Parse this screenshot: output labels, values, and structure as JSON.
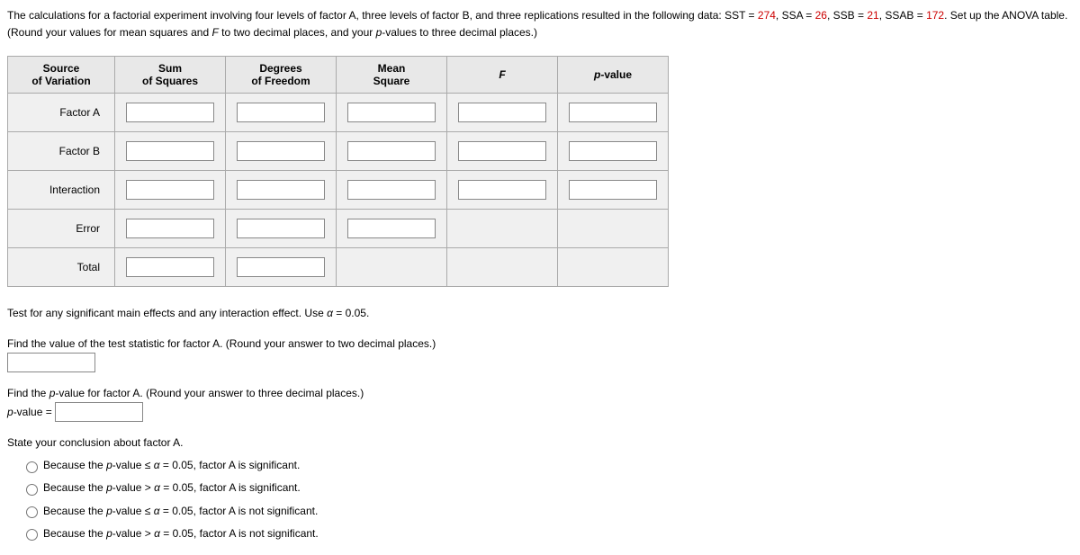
{
  "problem": {
    "text_part1": "The calculations for a factorial experiment involving four levels of factor A, three levels of factor B, and three replications resulted in the following data: SST = ",
    "sst": "274",
    "text_part2": ", SSA = ",
    "ssa": "26",
    "text_part3": ", SSB = ",
    "ssb": "21",
    "text_part4": ", SSAB = ",
    "ssab": "172",
    "text_part5": ". Set up the ANOVA table. (Round your values for mean squares and ",
    "f_label": "F",
    "text_part6": " to two decimal places, and your ",
    "p_label": "p",
    "text_part7": "-values to three decimal places.)"
  },
  "table": {
    "headers": {
      "source": "Source\nof Variation",
      "ss": "Sum\nof Squares",
      "df": "Degrees\nof Freedom",
      "ms": "Mean\nSquare",
      "f": "F",
      "pvalue": "p-value"
    },
    "rows": {
      "factorA": "Factor A",
      "factorB": "Factor B",
      "interaction": "Interaction",
      "error": "Error",
      "total": "Total"
    }
  },
  "alpha_text": {
    "part1": "Test for any significant main effects and any interaction effect. Use ",
    "alpha_eq": "α = 0.05."
  },
  "test_stat_A": "Find the value of the test statistic for factor A. (Round your answer to two decimal places.)",
  "pvalue_A": {
    "part1": "Find the ",
    "p": "p",
    "part2": "-value for factor A. (Round your answer to three decimal places.)",
    "label_p": "p",
    "label_rest": "-value ="
  },
  "conclusion_A": {
    "heading": "State your conclusion about factor A.",
    "options": {
      "opt1": {
        "pre": "Because the ",
        "p": "p",
        "mid": "-value ≤ ",
        "alpha": "α",
        "post": " = 0.05, factor A is significant."
      },
      "opt2": {
        "pre": "Because the ",
        "p": "p",
        "mid": "-value > ",
        "alpha": "α",
        "post": " = 0.05, factor A is significant."
      },
      "opt3": {
        "pre": "Because the ",
        "p": "p",
        "mid": "-value ≤ ",
        "alpha": "α",
        "post": " = 0.05, factor A is not significant."
      },
      "opt4": {
        "pre": "Because the ",
        "p": "p",
        "mid": "-value > ",
        "alpha": "α",
        "post": " = 0.05, factor A is not significant."
      }
    }
  }
}
